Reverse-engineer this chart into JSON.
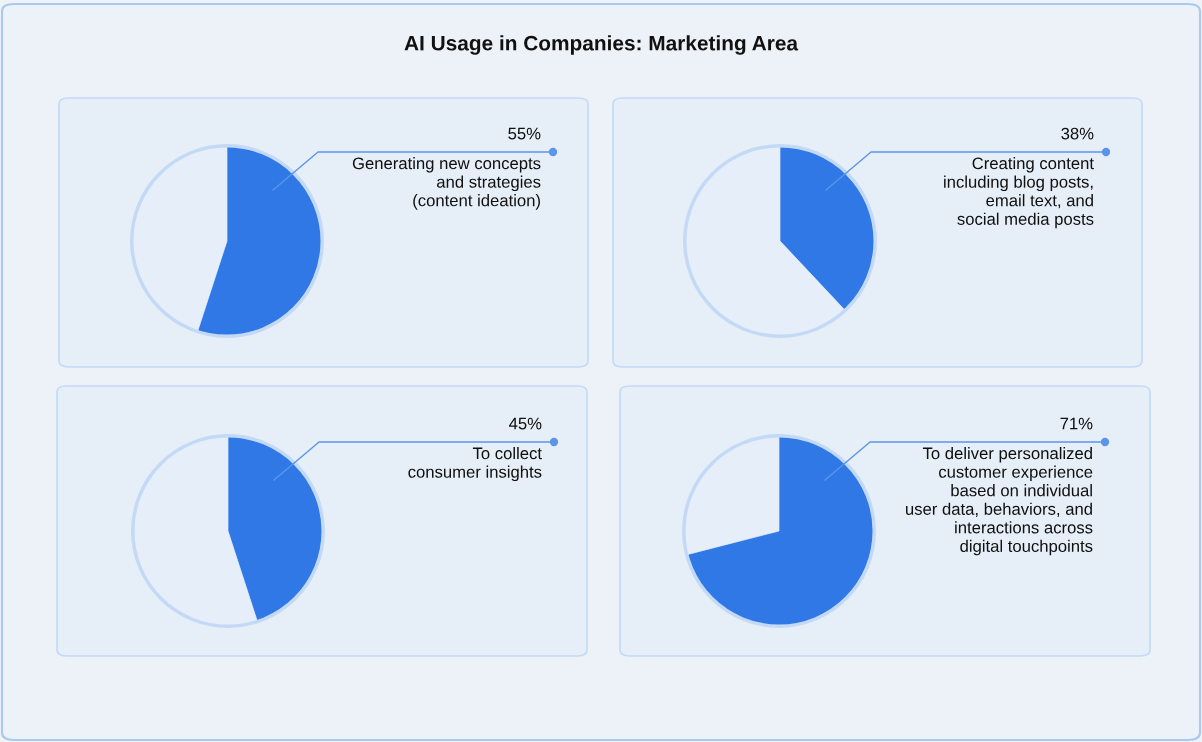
{
  "chart_data": [
    {
      "type": "pie",
      "title": "AI Usage in Companies: Marketing Area",
      "categories": [
        "Generating new concepts\nand strategies\n(content ideation)",
        null
      ],
      "values": [
        55,
        45
      ],
      "value_labels": [
        "55%",
        null
      ],
      "colors": [
        "#2f78e6",
        "#e6eff9"
      ]
    },
    {
      "type": "pie",
      "categories": [
        "Creating content\nincluding blog posts,\nemail text, and\nsocial media posts",
        null
      ],
      "values": [
        38,
        62
      ],
      "value_labels": [
        "38%",
        null
      ],
      "colors": [
        "#2f78e6",
        "#e6eff9"
      ]
    },
    {
      "type": "pie",
      "categories": [
        "To collect\nconsumer insights",
        null
      ],
      "values": [
        45,
        55
      ],
      "value_labels": [
        "45%",
        null
      ],
      "colors": [
        "#2f78e6",
        "#e6eff9"
      ]
    },
    {
      "type": "pie",
      "categories": [
        "To deliver personalized\ncustomer experience\nbased on individual\nuser data, behaviors, and\ninteractions across\ndigital touchpoints",
        null
      ],
      "values": [
        71,
        29
      ],
      "value_labels": [
        "71%",
        null
      ],
      "colors": [
        "#2f78e6",
        "#e6eff9"
      ]
    }
  ]
}
